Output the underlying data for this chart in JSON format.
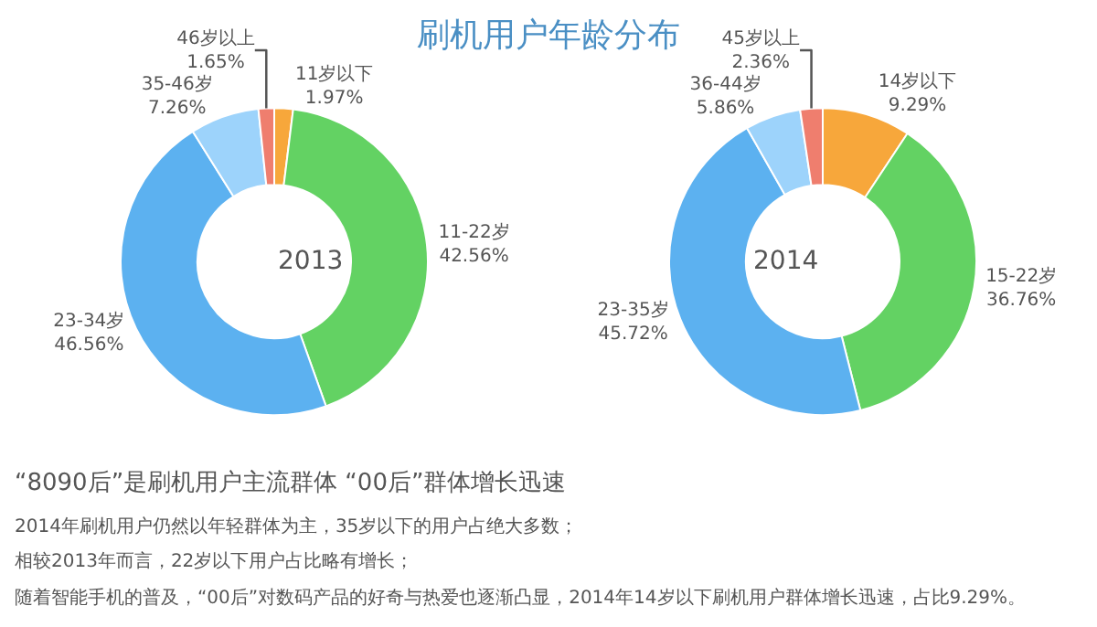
{
  "chart_data": [
    {
      "type": "donut",
      "title": "刷机用户年龄分布",
      "annotations": [
        "2013"
      ],
      "categories": [
        "11岁以下",
        "11-22岁",
        "23-34岁",
        "35-46岁",
        "46岁以上"
      ],
      "values": [
        1.97,
        42.56,
        46.56,
        7.26,
        1.65
      ],
      "value_labels": [
        "1.97%",
        "42.56%",
        "46.56%",
        "7.26%",
        "1.65%"
      ],
      "colors": [
        "#f7a73b",
        "#63d263",
        "#5cb1f0",
        "#9dd3fb",
        "#ef7e6e"
      ],
      "legend": false
    },
    {
      "type": "donut",
      "annotations": [
        "2014"
      ],
      "categories": [
        "14岁以下",
        "15-22岁",
        "23-35岁",
        "36-44岁",
        "45岁以上"
      ],
      "values": [
        9.29,
        36.76,
        45.72,
        5.86,
        2.36
      ],
      "value_labels": [
        "9.29%",
        "36.76%",
        "45.72%",
        "5.86%",
        "2.36%"
      ],
      "colors": [
        "#f7a73b",
        "#63d263",
        "#5cb1f0",
        "#9dd3fb",
        "#ef7e6e"
      ],
      "legend": false
    },
    {
      "type": "other",
      "title": "“8090后”是刷机用户主流群体 “00后”群体增长迅速",
      "annotations": [
        "2014年刷机用户仍然以年轻群体为主，35岁以下的用户占绝大多数；",
        "相较2013年而言，22岁以下用户占比略有增长；",
        "随着智能手机的普及，“00后”对数码产品的好奇与热爱也逐渐凸显，2014年14岁以下刷机用户群体增长迅速，占比9.29%。"
      ]
    }
  ]
}
